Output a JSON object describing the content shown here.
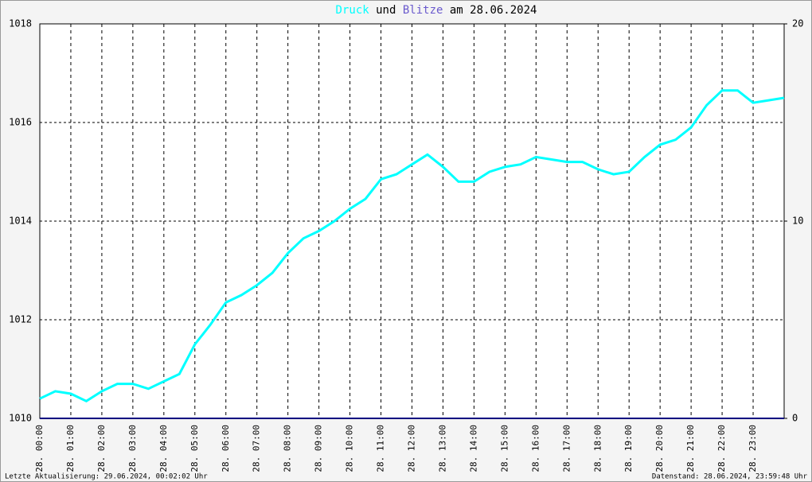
{
  "chart_data": {
    "type": "line",
    "title_connector": "und",
    "title_suffix": "am 28.06.2024",
    "x": [
      0,
      0.5,
      1,
      1.5,
      2,
      2.5,
      3,
      3.5,
      4,
      4.5,
      5,
      5.5,
      6,
      6.5,
      7,
      7.5,
      8,
      8.5,
      9,
      9.5,
      10,
      10.5,
      11,
      11.5,
      12,
      12.5,
      13,
      13.5,
      14,
      14.5,
      15,
      15.5,
      16,
      16.5,
      17,
      17.5,
      18,
      18.5,
      19,
      19.5,
      20,
      20.5,
      21,
      21.5,
      22,
      22.5,
      23,
      23.5,
      24
    ],
    "series": [
      {
        "name": "Druck",
        "color": "#00ffff",
        "axis": "y",
        "values": [
          1010.4,
          1010.55,
          1010.5,
          1010.35,
          1010.55,
          1010.7,
          1010.7,
          1010.6,
          1010.75,
          1010.9,
          1011.5,
          1011.9,
          1012.35,
          1012.5,
          1012.7,
          1012.95,
          1013.35,
          1013.65,
          1013.8,
          1014.0,
          1014.25,
          1014.45,
          1014.85,
          1014.95,
          1015.15,
          1015.35,
          1015.1,
          1014.8,
          1014.8,
          1015.0,
          1015.1,
          1015.15,
          1015.3,
          1015.25,
          1015.2,
          1015.2,
          1015.05,
          1014.95,
          1015.0,
          1015.3,
          1015.55,
          1015.65,
          1015.9,
          1016.35,
          1016.65,
          1016.65,
          1016.4,
          1016.45,
          1016.5
        ]
      },
      {
        "name": "Blitze",
        "color": "#000080",
        "title_color": "#6a5acd",
        "axis": "y2",
        "values": [
          0,
          0,
          0,
          0,
          0,
          0,
          0,
          0,
          0,
          0,
          0,
          0,
          0,
          0,
          0,
          0,
          0,
          0,
          0,
          0,
          0,
          0,
          0,
          0,
          0,
          0,
          0,
          0,
          0,
          0,
          0,
          0,
          0,
          0,
          0,
          0,
          0,
          0,
          0,
          0,
          0,
          0,
          0,
          0,
          0,
          0,
          0,
          0,
          0
        ]
      }
    ],
    "xlim": [
      0,
      24
    ],
    "xticks": [
      {
        "value": 0,
        "label": "28. 00:00"
      },
      {
        "value": 1,
        "label": "28. 01:00"
      },
      {
        "value": 2,
        "label": "28. 02:00"
      },
      {
        "value": 3,
        "label": "28. 03:00"
      },
      {
        "value": 4,
        "label": "28. 04:00"
      },
      {
        "value": 5,
        "label": "28. 05:00"
      },
      {
        "value": 6,
        "label": "28. 06:00"
      },
      {
        "value": 7,
        "label": "28. 07:00"
      },
      {
        "value": 8,
        "label": "28. 08:00"
      },
      {
        "value": 9,
        "label": "28. 09:00"
      },
      {
        "value": 10,
        "label": "28. 10:00"
      },
      {
        "value": 11,
        "label": "28. 11:00"
      },
      {
        "value": 12,
        "label": "28. 12:00"
      },
      {
        "value": 13,
        "label": "28. 13:00"
      },
      {
        "value": 14,
        "label": "28. 14:00"
      },
      {
        "value": 15,
        "label": "28. 15:00"
      },
      {
        "value": 16,
        "label": "28. 16:00"
      },
      {
        "value": 17,
        "label": "28. 17:00"
      },
      {
        "value": 18,
        "label": "28. 18:00"
      },
      {
        "value": 19,
        "label": "28. 19:00"
      },
      {
        "value": 20,
        "label": "28. 20:00"
      },
      {
        "value": 21,
        "label": "28. 21:00"
      },
      {
        "value": 22,
        "label": "28. 22:00"
      },
      {
        "value": 23,
        "label": "28. 23:00"
      }
    ],
    "ylim": [
      1010,
      1018
    ],
    "yticks": [
      1010,
      1012,
      1014,
      1016,
      1018
    ],
    "y2lim": [
      0,
      20
    ],
    "y2ticks": [
      0,
      10,
      20
    ],
    "grid": true,
    "footer_left": "Letzte Aktualisierung: 29.06.2024, 00:02:02 Uhr",
    "footer_right": "Datenstand: 28.06.2024, 23:59:48 Uhr"
  }
}
